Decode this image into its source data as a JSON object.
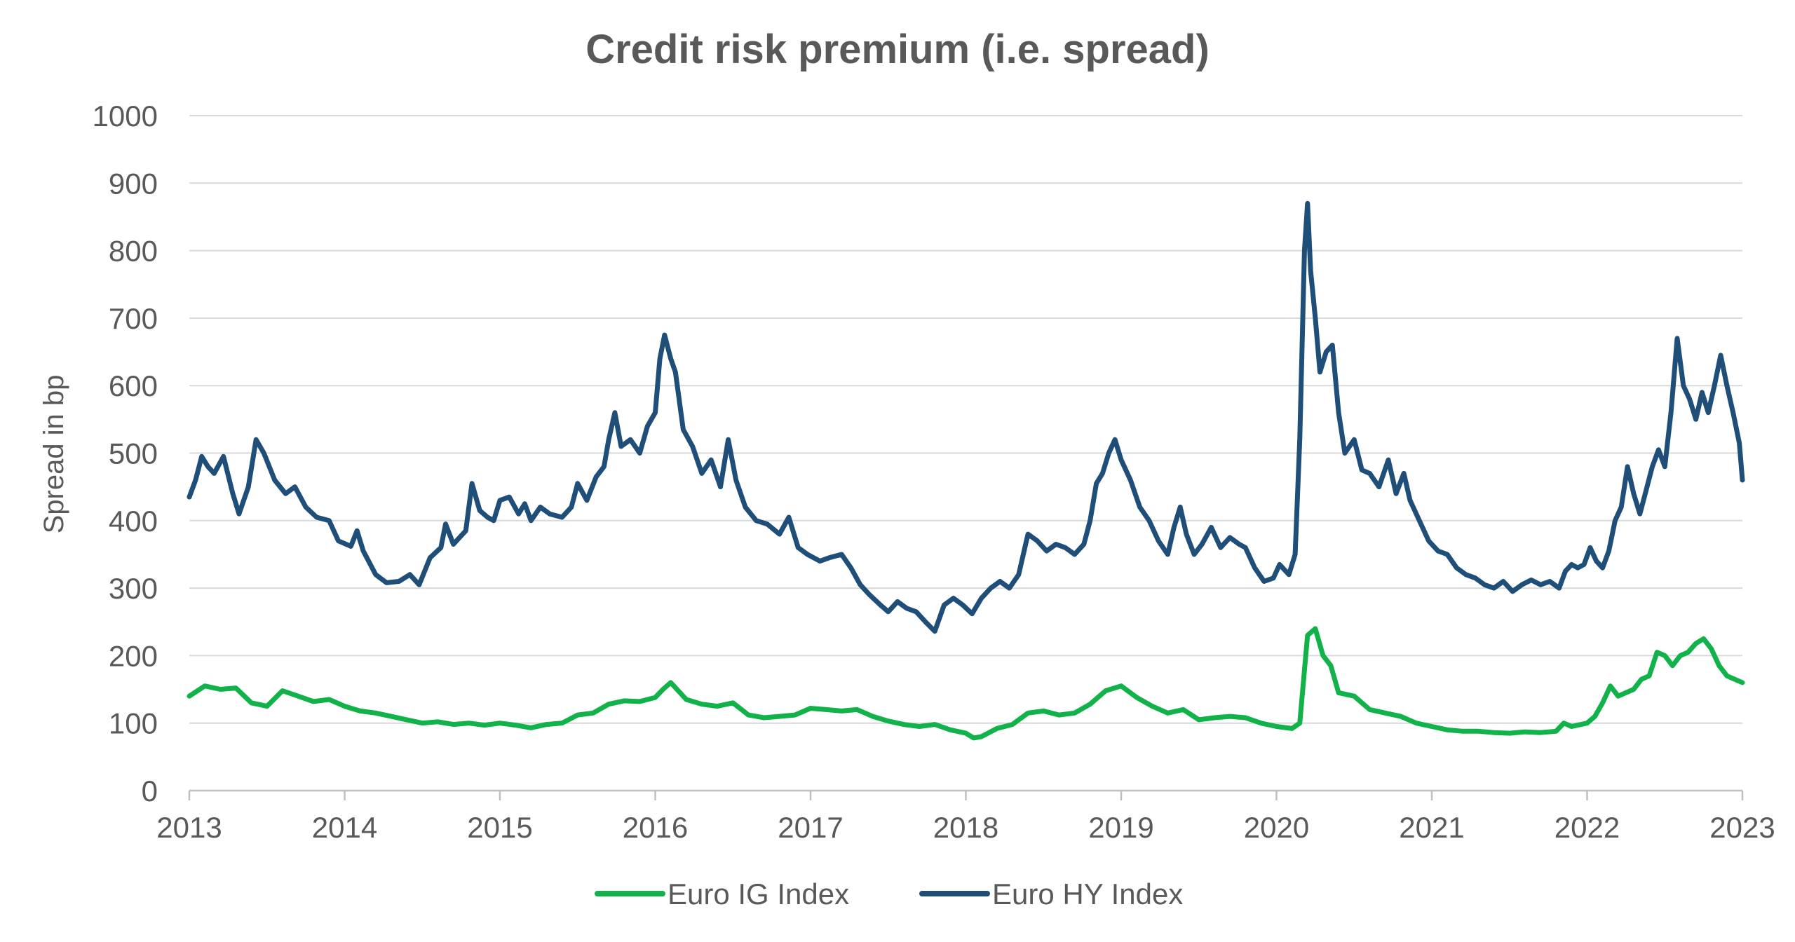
{
  "chart_data": {
    "type": "line",
    "title": "Credit risk premium (i.e. spread)",
    "xlabel": "",
    "ylabel": "Spread in bp",
    "xlim": [
      2013,
      2023
    ],
    "ylim": [
      0,
      1000
    ],
    "x_ticks": [
      "2013",
      "2014",
      "2015",
      "2016",
      "2017",
      "2018",
      "2019",
      "2020",
      "2021",
      "2022",
      "2023"
    ],
    "y_ticks": [
      "0",
      "100",
      "200",
      "300",
      "400",
      "500",
      "600",
      "700",
      "800",
      "900",
      "1000"
    ],
    "grid": true,
    "legend_position": "bottom",
    "series": [
      {
        "name": "Euro IG Index",
        "color": "#12b24a",
        "points": [
          [
            2013.0,
            140
          ],
          [
            2013.1,
            155
          ],
          [
            2013.2,
            150
          ],
          [
            2013.3,
            152
          ],
          [
            2013.4,
            130
          ],
          [
            2013.5,
            125
          ],
          [
            2013.6,
            148
          ],
          [
            2013.7,
            140
          ],
          [
            2013.8,
            132
          ],
          [
            2013.9,
            135
          ],
          [
            2014.0,
            125
          ],
          [
            2014.1,
            118
          ],
          [
            2014.2,
            115
          ],
          [
            2014.3,
            110
          ],
          [
            2014.4,
            105
          ],
          [
            2014.5,
            100
          ],
          [
            2014.6,
            102
          ],
          [
            2014.7,
            98
          ],
          [
            2014.8,
            100
          ],
          [
            2014.9,
            97
          ],
          [
            2015.0,
            100
          ],
          [
            2015.1,
            97
          ],
          [
            2015.2,
            93
          ],
          [
            2015.3,
            98
          ],
          [
            2015.4,
            100
          ],
          [
            2015.5,
            112
          ],
          [
            2015.6,
            115
          ],
          [
            2015.7,
            128
          ],
          [
            2015.8,
            133
          ],
          [
            2015.9,
            132
          ],
          [
            2016.0,
            138
          ],
          [
            2016.05,
            150
          ],
          [
            2016.1,
            160
          ],
          [
            2016.2,
            135
          ],
          [
            2016.3,
            128
          ],
          [
            2016.4,
            125
          ],
          [
            2016.5,
            130
          ],
          [
            2016.6,
            112
          ],
          [
            2016.7,
            108
          ],
          [
            2016.8,
            110
          ],
          [
            2016.9,
            112
          ],
          [
            2017.0,
            122
          ],
          [
            2017.1,
            120
          ],
          [
            2017.2,
            118
          ],
          [
            2017.3,
            120
          ],
          [
            2017.4,
            110
          ],
          [
            2017.5,
            103
          ],
          [
            2017.6,
            98
          ],
          [
            2017.7,
            95
          ],
          [
            2017.8,
            98
          ],
          [
            2017.9,
            90
          ],
          [
            2018.0,
            85
          ],
          [
            2018.05,
            78
          ],
          [
            2018.1,
            80
          ],
          [
            2018.2,
            92
          ],
          [
            2018.3,
            98
          ],
          [
            2018.4,
            115
          ],
          [
            2018.5,
            118
          ],
          [
            2018.6,
            112
          ],
          [
            2018.7,
            115
          ],
          [
            2018.8,
            128
          ],
          [
            2018.9,
            148
          ],
          [
            2019.0,
            155
          ],
          [
            2019.1,
            138
          ],
          [
            2019.2,
            125
          ],
          [
            2019.3,
            115
          ],
          [
            2019.4,
            120
          ],
          [
            2019.5,
            105
          ],
          [
            2019.6,
            108
          ],
          [
            2019.7,
            110
          ],
          [
            2019.8,
            108
          ],
          [
            2019.9,
            100
          ],
          [
            2020.0,
            95
          ],
          [
            2020.1,
            92
          ],
          [
            2020.15,
            100
          ],
          [
            2020.2,
            230
          ],
          [
            2020.25,
            240
          ],
          [
            2020.3,
            200
          ],
          [
            2020.35,
            185
          ],
          [
            2020.4,
            145
          ],
          [
            2020.5,
            140
          ],
          [
            2020.6,
            120
          ],
          [
            2020.7,
            115
          ],
          [
            2020.8,
            110
          ],
          [
            2020.9,
            100
          ],
          [
            2021.0,
            95
          ],
          [
            2021.1,
            90
          ],
          [
            2021.2,
            88
          ],
          [
            2021.3,
            88
          ],
          [
            2021.4,
            86
          ],
          [
            2021.5,
            85
          ],
          [
            2021.6,
            87
          ],
          [
            2021.7,
            86
          ],
          [
            2021.8,
            88
          ],
          [
            2021.85,
            100
          ],
          [
            2021.9,
            95
          ],
          [
            2022.0,
            100
          ],
          [
            2022.05,
            110
          ],
          [
            2022.1,
            130
          ],
          [
            2022.15,
            155
          ],
          [
            2022.2,
            140
          ],
          [
            2022.3,
            150
          ],
          [
            2022.35,
            165
          ],
          [
            2022.4,
            170
          ],
          [
            2022.45,
            205
          ],
          [
            2022.5,
            200
          ],
          [
            2022.55,
            185
          ],
          [
            2022.6,
            200
          ],
          [
            2022.65,
            205
          ],
          [
            2022.7,
            218
          ],
          [
            2022.75,
            225
          ],
          [
            2022.8,
            210
          ],
          [
            2022.85,
            185
          ],
          [
            2022.9,
            170
          ],
          [
            2023.0,
            160
          ]
        ]
      },
      {
        "name": "Euro HY Index",
        "color": "#1f4e79",
        "points": [
          [
            2013.0,
            435
          ],
          [
            2013.04,
            460
          ],
          [
            2013.08,
            495
          ],
          [
            2013.12,
            480
          ],
          [
            2013.16,
            470
          ],
          [
            2013.22,
            495
          ],
          [
            2013.28,
            440
          ],
          [
            2013.32,
            410
          ],
          [
            2013.38,
            450
          ],
          [
            2013.43,
            520
          ],
          [
            2013.48,
            500
          ],
          [
            2013.55,
            460
          ],
          [
            2013.62,
            440
          ],
          [
            2013.68,
            450
          ],
          [
            2013.75,
            420
          ],
          [
            2013.82,
            405
          ],
          [
            2013.9,
            400
          ],
          [
            2013.96,
            370
          ],
          [
            2014.04,
            362
          ],
          [
            2014.08,
            385
          ],
          [
            2014.12,
            355
          ],
          [
            2014.2,
            320
          ],
          [
            2014.27,
            308
          ],
          [
            2014.35,
            310
          ],
          [
            2014.42,
            320
          ],
          [
            2014.48,
            305
          ],
          [
            2014.55,
            345
          ],
          [
            2014.62,
            360
          ],
          [
            2014.65,
            395
          ],
          [
            2014.7,
            365
          ],
          [
            2014.78,
            385
          ],
          [
            2014.82,
            455
          ],
          [
            2014.87,
            415
          ],
          [
            2014.92,
            405
          ],
          [
            2014.96,
            400
          ],
          [
            2015.0,
            430
          ],
          [
            2015.06,
            435
          ],
          [
            2015.12,
            410
          ],
          [
            2015.16,
            425
          ],
          [
            2015.2,
            400
          ],
          [
            2015.26,
            420
          ],
          [
            2015.32,
            410
          ],
          [
            2015.4,
            405
          ],
          [
            2015.46,
            420
          ],
          [
            2015.5,
            455
          ],
          [
            2015.56,
            430
          ],
          [
            2015.62,
            465
          ],
          [
            2015.67,
            480
          ],
          [
            2015.7,
            520
          ],
          [
            2015.74,
            560
          ],
          [
            2015.78,
            510
          ],
          [
            2015.84,
            520
          ],
          [
            2015.9,
            500
          ],
          [
            2015.95,
            540
          ],
          [
            2016.0,
            560
          ],
          [
            2016.03,
            640
          ],
          [
            2016.06,
            675
          ],
          [
            2016.1,
            640
          ],
          [
            2016.13,
            620
          ],
          [
            2016.18,
            535
          ],
          [
            2016.24,
            510
          ],
          [
            2016.3,
            470
          ],
          [
            2016.36,
            490
          ],
          [
            2016.42,
            450
          ],
          [
            2016.47,
            520
          ],
          [
            2016.52,
            460
          ],
          [
            2016.58,
            420
          ],
          [
            2016.65,
            400
          ],
          [
            2016.72,
            395
          ],
          [
            2016.8,
            380
          ],
          [
            2016.86,
            405
          ],
          [
            2016.92,
            360
          ],
          [
            2016.98,
            350
          ],
          [
            2017.06,
            340
          ],
          [
            2017.12,
            345
          ],
          [
            2017.2,
            350
          ],
          [
            2017.26,
            330
          ],
          [
            2017.32,
            305
          ],
          [
            2017.38,
            290
          ],
          [
            2017.45,
            275
          ],
          [
            2017.5,
            265
          ],
          [
            2017.56,
            280
          ],
          [
            2017.62,
            270
          ],
          [
            2017.68,
            265
          ],
          [
            2017.74,
            250
          ],
          [
            2017.8,
            236
          ],
          [
            2017.86,
            275
          ],
          [
            2017.92,
            285
          ],
          [
            2017.98,
            275
          ],
          [
            2018.04,
            262
          ],
          [
            2018.1,
            285
          ],
          [
            2018.16,
            300
          ],
          [
            2018.22,
            310
          ],
          [
            2018.28,
            300
          ],
          [
            2018.34,
            320
          ],
          [
            2018.4,
            380
          ],
          [
            2018.46,
            370
          ],
          [
            2018.52,
            355
          ],
          [
            2018.58,
            365
          ],
          [
            2018.64,
            360
          ],
          [
            2018.7,
            350
          ],
          [
            2018.76,
            365
          ],
          [
            2018.8,
            400
          ],
          [
            2018.84,
            455
          ],
          [
            2018.88,
            470
          ],
          [
            2018.92,
            500
          ],
          [
            2018.96,
            520
          ],
          [
            2019.0,
            490
          ],
          [
            2019.06,
            460
          ],
          [
            2019.12,
            420
          ],
          [
            2019.18,
            400
          ],
          [
            2019.24,
            370
          ],
          [
            2019.3,
            350
          ],
          [
            2019.34,
            390
          ],
          [
            2019.38,
            420
          ],
          [
            2019.42,
            380
          ],
          [
            2019.47,
            350
          ],
          [
            2019.52,
            365
          ],
          [
            2019.58,
            390
          ],
          [
            2019.64,
            360
          ],
          [
            2019.7,
            375
          ],
          [
            2019.76,
            365
          ],
          [
            2019.8,
            360
          ],
          [
            2019.86,
            330
          ],
          [
            2019.92,
            310
          ],
          [
            2019.98,
            315
          ],
          [
            2020.02,
            335
          ],
          [
            2020.08,
            320
          ],
          [
            2020.12,
            350
          ],
          [
            2020.15,
            520
          ],
          [
            2020.18,
            800
          ],
          [
            2020.2,
            870
          ],
          [
            2020.22,
            770
          ],
          [
            2020.25,
            700
          ],
          [
            2020.28,
            620
          ],
          [
            2020.32,
            650
          ],
          [
            2020.36,
            660
          ],
          [
            2020.4,
            560
          ],
          [
            2020.44,
            500
          ],
          [
            2020.5,
            520
          ],
          [
            2020.55,
            475
          ],
          [
            2020.6,
            470
          ],
          [
            2020.66,
            450
          ],
          [
            2020.72,
            490
          ],
          [
            2020.77,
            440
          ],
          [
            2020.82,
            470
          ],
          [
            2020.86,
            430
          ],
          [
            2020.92,
            400
          ],
          [
            2020.98,
            370
          ],
          [
            2021.04,
            355
          ],
          [
            2021.1,
            350
          ],
          [
            2021.16,
            330
          ],
          [
            2021.22,
            320
          ],
          [
            2021.28,
            315
          ],
          [
            2021.34,
            305
          ],
          [
            2021.4,
            300
          ],
          [
            2021.46,
            310
          ],
          [
            2021.52,
            295
          ],
          [
            2021.58,
            305
          ],
          [
            2021.64,
            312
          ],
          [
            2021.7,
            305
          ],
          [
            2021.76,
            310
          ],
          [
            2021.82,
            300
          ],
          [
            2021.86,
            325
          ],
          [
            2021.9,
            335
          ],
          [
            2021.94,
            330
          ],
          [
            2021.98,
            335
          ],
          [
            2022.02,
            360
          ],
          [
            2022.06,
            340
          ],
          [
            2022.1,
            330
          ],
          [
            2022.14,
            355
          ],
          [
            2022.18,
            400
          ],
          [
            2022.22,
            420
          ],
          [
            2022.26,
            480
          ],
          [
            2022.3,
            440
          ],
          [
            2022.34,
            410
          ],
          [
            2022.38,
            445
          ],
          [
            2022.42,
            480
          ],
          [
            2022.46,
            505
          ],
          [
            2022.5,
            480
          ],
          [
            2022.54,
            560
          ],
          [
            2022.58,
            670
          ],
          [
            2022.62,
            600
          ],
          [
            2022.66,
            580
          ],
          [
            2022.7,
            550
          ],
          [
            2022.74,
            590
          ],
          [
            2022.78,
            560
          ],
          [
            2022.82,
            600
          ],
          [
            2022.86,
            645
          ],
          [
            2022.9,
            600
          ],
          [
            2022.94,
            560
          ],
          [
            2022.98,
            515
          ],
          [
            2023.0,
            460
          ]
        ]
      }
    ]
  }
}
